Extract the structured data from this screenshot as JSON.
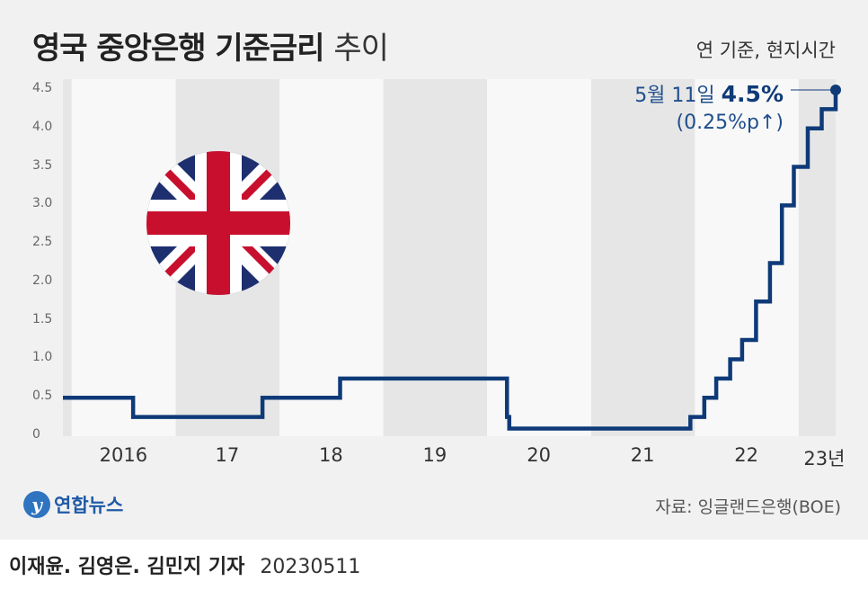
{
  "title": {
    "main": "영국 중앙은행 기준금리",
    "sub": "추이"
  },
  "basis_note": "연 기준, 현지시간",
  "annotation": {
    "date": "5월 11일",
    "rate": "4.5%",
    "change": "(0.25%p↑)"
  },
  "source": "자료: 잉글랜드은행(BOE)",
  "logo_text": "연합뉴스",
  "logo_mark": "y",
  "credits": {
    "names": "이재윤. 김영은. 김민지 기자",
    "date": "20230511"
  },
  "colors": {
    "line": "#0e3a78",
    "band_dark": "#e6e6e6",
    "band_light": "#f8f8f8",
    "background": "#f1f1f1"
  },
  "icons": {
    "flag": "union-jack-flag-icon"
  },
  "chart_data": {
    "type": "line",
    "step": true,
    "title": "영국 중앙은행 기준금리 추이",
    "xlabel": "",
    "ylabel": "",
    "ylim": [
      0,
      4.5
    ],
    "yticks": [
      "0",
      "0.5",
      "1.0",
      "1.5",
      "2.0",
      "2.5",
      "3.0",
      "3.5",
      "4.0",
      "4.5"
    ],
    "xticks": [
      "2016",
      "17",
      "18",
      "19",
      "20",
      "21",
      "22",
      "23년"
    ],
    "x_range": [
      "2015-12-01",
      "2023-05-11"
    ],
    "grid": false,
    "series": [
      {
        "points": [
          {
            "x": "2015-12-01",
            "y": 0.5
          },
          {
            "x": "2016-08-04",
            "y": 0.25
          },
          {
            "x": "2017-11-02",
            "y": 0.5
          },
          {
            "x": "2018-08-02",
            "y": 0.75
          },
          {
            "x": "2020-03-11",
            "y": 0.25
          },
          {
            "x": "2020-03-19",
            "y": 0.1
          },
          {
            "x": "2021-12-16",
            "y": 0.25
          },
          {
            "x": "2022-02-03",
            "y": 0.5
          },
          {
            "x": "2022-03-17",
            "y": 0.75
          },
          {
            "x": "2022-05-05",
            "y": 1.0
          },
          {
            "x": "2022-06-16",
            "y": 1.25
          },
          {
            "x": "2022-08-04",
            "y": 1.75
          },
          {
            "x": "2022-09-22",
            "y": 2.25
          },
          {
            "x": "2022-11-03",
            "y": 3.0
          },
          {
            "x": "2022-12-15",
            "y": 3.5
          },
          {
            "x": "2023-02-02",
            "y": 4.0
          },
          {
            "x": "2023-03-23",
            "y": 4.25
          },
          {
            "x": "2023-05-11",
            "y": 4.5
          }
        ]
      }
    ]
  }
}
